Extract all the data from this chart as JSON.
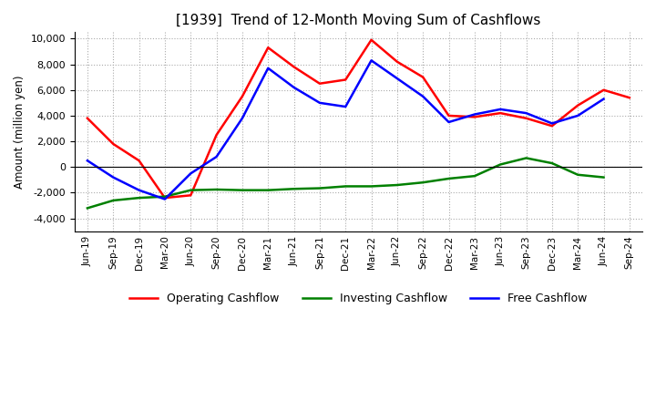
{
  "title": "[1939]  Trend of 12-Month Moving Sum of Cashflows",
  "ylabel": "Amount (million yen)",
  "ylim": [
    -5000,
    10500
  ],
  "yticks": [
    -4000,
    -2000,
    0,
    2000,
    4000,
    6000,
    8000,
    10000
  ],
  "x_labels": [
    "Jun-19",
    "Sep-19",
    "Dec-19",
    "Mar-20",
    "Jun-20",
    "Sep-20",
    "Dec-20",
    "Mar-21",
    "Jun-21",
    "Sep-21",
    "Dec-21",
    "Mar-22",
    "Jun-22",
    "Sep-22",
    "Dec-22",
    "Mar-23",
    "Jun-23",
    "Sep-23",
    "Dec-23",
    "Mar-24",
    "Jun-24",
    "Sep-24"
  ],
  "operating": [
    3800,
    1800,
    500,
    -2400,
    -2200,
    2500,
    5500,
    9300,
    7800,
    6500,
    6800,
    9900,
    8200,
    7000,
    4000,
    3900,
    4200,
    3800,
    3200,
    4800,
    6000,
    5400
  ],
  "investing": [
    -3200,
    -2600,
    -2400,
    -2300,
    -1800,
    -1750,
    -1800,
    -1800,
    -1700,
    -1650,
    -1500,
    -1500,
    -1400,
    -1200,
    -900,
    -700,
    200,
    700,
    300,
    -600,
    -800,
    null
  ],
  "free": [
    500,
    -800,
    -1800,
    -2500,
    -500,
    800,
    3800,
    7700,
    6200,
    5000,
    4700,
    8300,
    6900,
    5500,
    3500,
    4100,
    4500,
    4200,
    3400,
    4000,
    5300,
    null
  ],
  "operating_color": "#ff0000",
  "investing_color": "#008000",
  "free_color": "#0000ff",
  "bg_color": "#ffffff",
  "grid_color": "#aaaaaa",
  "title_fontsize": 11,
  "legend_labels": [
    "Operating Cashflow",
    "Investing Cashflow",
    "Free Cashflow"
  ]
}
